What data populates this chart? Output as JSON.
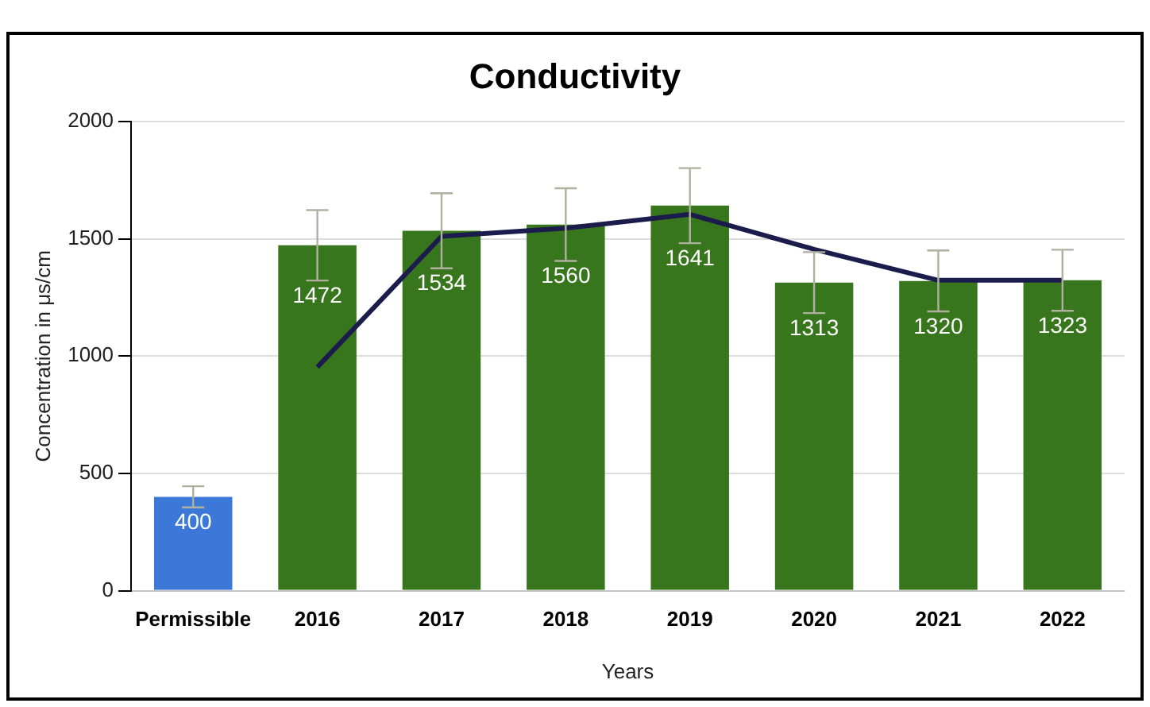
{
  "chart_data": {
    "type": "bar",
    "title": "Conductivity",
    "xlabel": "Years",
    "ylabel": "Concentration in μs/cm",
    "categories": [
      "Permissible",
      "2016",
      "2017",
      "2018",
      "2019",
      "2020",
      "2021",
      "2022"
    ],
    "series": [
      {
        "colors": [
          "#3c78d8",
          "#38761d",
          "#38761d",
          "#38761d",
          "#38761d",
          "#38761d",
          "#38761d",
          "#38761d"
        ],
        "values": [
          400,
          1472,
          1534,
          1560,
          1641,
          1313,
          1320,
          1323
        ],
        "value_labels": [
          "400",
          "1472",
          "1534",
          "1560",
          "1641",
          "1313",
          "1320",
          "1323"
        ],
        "errors": [
          45,
          150,
          160,
          155,
          160,
          130,
          130,
          130
        ]
      },
      {
        "type": "line",
        "color": "#1c1c4c",
        "values": [
          null,
          953,
          1510,
          1545,
          1604,
          1455,
          1323,
          1323
        ]
      }
    ],
    "ylim": [
      0,
      2000
    ],
    "yticks": [
      0,
      500,
      1000,
      1500,
      2000
    ],
    "grid": "y",
    "legend": false,
    "marker": "none"
  }
}
